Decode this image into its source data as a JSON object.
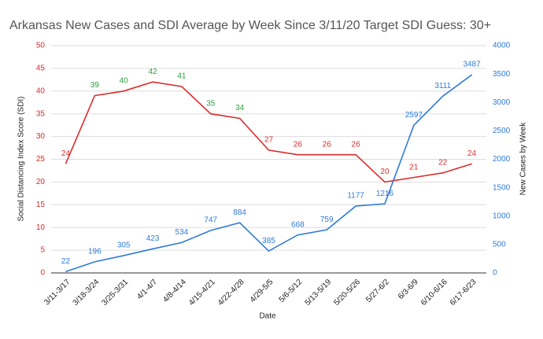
{
  "chart_data": {
    "type": "line",
    "title": "Arkansas New Cases and SDI Average by Week Since 3/11/20 Target SDI Guess: 30+",
    "x_label": "Date",
    "y_label": "Social Distancing Index Score (SDI)",
    "y2_label": "New Cases by Week",
    "categories": [
      "3/11-3/17",
      "3/18-3/24",
      "3/25-3/31",
      "4/1-4/7",
      "4/8-4/14",
      "4/15-4/21",
      "4/22-4/28",
      "4/29-5/5",
      "5/6-5/12",
      "5/13-5/19",
      "5/20-5/26",
      "5/27-6/2",
      "6/3-6/9",
      "6/10-6/16",
      "6/17-6/23"
    ],
    "series": [
      {
        "name": "SDI",
        "color": "#db2c2c",
        "values": [
          24,
          39,
          40,
          42,
          41,
          35,
          34,
          27,
          26,
          26,
          26,
          20,
          21,
          22,
          24
        ],
        "label_colors": [
          "#db2c2c",
          "#2e9e3e",
          "#2e9e3e",
          "#2e9e3e",
          "#2e9e3e",
          "#2e9e3e",
          "#2e9e3e",
          "#db2c2c",
          "#db2c2c",
          "#db2c2c",
          "#db2c2c",
          "#db2c2c",
          "#db2c2c",
          "#db2c2c",
          "#db2c2c"
        ]
      },
      {
        "name": "New Cases",
        "color": "#2f7ad8",
        "axis": "y2",
        "values": [
          22,
          196,
          305,
          423,
          534,
          747,
          884,
          385,
          668,
          759,
          1177,
          1216,
          2597,
          3111,
          3487
        ]
      }
    ],
    "ylim": [
      0,
      50
    ],
    "yticks": [
      0,
      5,
      10,
      15,
      20,
      25,
      30,
      35,
      40,
      45,
      50
    ],
    "ytick_color": "#db2c2c",
    "y2lim": [
      0,
      4000
    ],
    "y2ticks": [
      0,
      500,
      1000,
      1500,
      2000,
      2500,
      3000,
      3500,
      4000
    ],
    "y2tick_color": "#2f7ad8",
    "grid": true
  }
}
